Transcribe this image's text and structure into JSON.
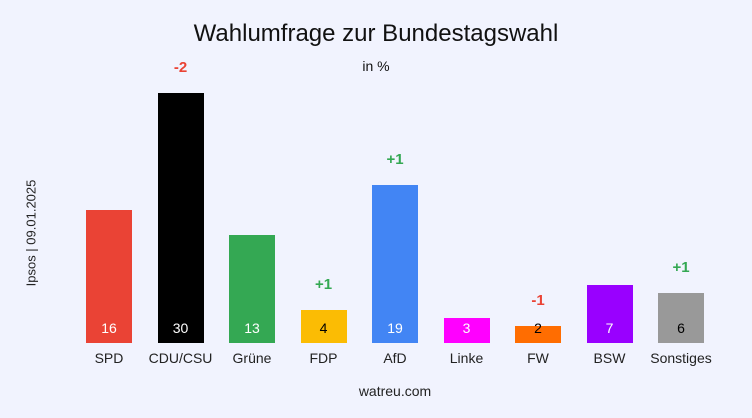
{
  "title": "Wahlumfrage zur Bundestagswahl",
  "subtitle": "in %",
  "side_label": "Ipsos | 09.01.2025",
  "footer": "watreu.com",
  "chart_data": {
    "type": "bar",
    "title": "Wahlumfrage zur Bundestagswahl",
    "subtitle": "in %",
    "xlabel": "",
    "ylabel": "Ipsos | 09.01.2025",
    "categories": [
      "SPD",
      "CDU/CSU",
      "Grüne",
      "FDP",
      "AfD",
      "Linke",
      "FW",
      "BSW",
      "Sonstiges"
    ],
    "values": [
      16,
      30,
      13,
      4,
      19,
      3,
      2,
      7,
      6
    ],
    "changes": [
      "",
      "-2",
      "",
      "+1",
      "+1",
      "",
      "-1",
      "",
      "+1"
    ],
    "colors": [
      "#ea4335",
      "#000000",
      "#34a853",
      "#fbbc04",
      "#4285f4",
      "#ff00ff",
      "#ff6d01",
      "#9900ff",
      "#999999"
    ],
    "value_label_colors": [
      "#ffffff",
      "#ffffff",
      "#ffffff",
      "#000000",
      "#ffffff",
      "#ffffff",
      "#000000",
      "#ffffff",
      "#000000"
    ],
    "ylim": [
      0,
      30
    ],
    "grid": false,
    "legend": "none"
  }
}
